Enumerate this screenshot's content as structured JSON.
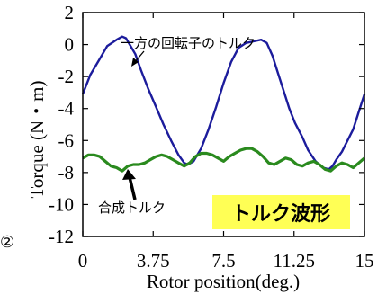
{
  "chart_data": {
    "type": "line",
    "xlabel": "Rotor position(deg.)",
    "ylabel": "Torque (N・m)",
    "xlim": [
      0,
      15
    ],
    "ylim": [
      -12,
      2
    ],
    "x_tick_labels": [
      "0",
      "3.75",
      "7.5",
      "11.25",
      "15"
    ],
    "y_tick_labels": [
      "2",
      "0",
      "-2",
      "-4",
      "-6",
      "-8",
      "-10",
      "-12"
    ],
    "x_ticks": [
      0,
      3.75,
      7.5,
      11.25,
      15
    ],
    "y_ticks": [
      2,
      0,
      -2,
      -4,
      -6,
      -8,
      -10,
      -12
    ],
    "grid": false,
    "series": [
      {
        "color": "#1c1c9c",
        "x": [
          0,
          0.4,
          0.9,
          1.3,
          1.8,
          2.1,
          2.3,
          2.5,
          2.8,
          3.1,
          3.5,
          3.9,
          4.3,
          4.7,
          5.1,
          5.4,
          5.6,
          5.9,
          6.3,
          6.7,
          7.1,
          7.5,
          7.9,
          8.3,
          8.7,
          9.1,
          9.5,
          9.8,
          10.1,
          10.4,
          10.7,
          11.0,
          11.3,
          11.7,
          12.0,
          12.4,
          12.8,
          13.1,
          13.3,
          13.5,
          13.8,
          14.1,
          14.4,
          14.7,
          15.0
        ],
        "y": [
          -3.1,
          -1.9,
          -0.9,
          -0.1,
          0.3,
          0.5,
          0.4,
          0.0,
          -0.6,
          -1.6,
          -2.8,
          -3.9,
          -5.0,
          -6.0,
          -6.9,
          -7.4,
          -7.5,
          -7.3,
          -6.5,
          -5.3,
          -3.9,
          -2.4,
          -1.1,
          -0.2,
          0.1,
          0.2,
          0.3,
          0.1,
          -0.7,
          -1.8,
          -2.9,
          -4.0,
          -4.9,
          -5.8,
          -6.6,
          -7.3,
          -7.7,
          -7.8,
          -7.6,
          -7.2,
          -6.7,
          -6.0,
          -5.3,
          -4.2,
          -3.1
        ]
      },
      {
        "color": "#2a8a1e",
        "x": [
          0,
          0.3,
          0.6,
          0.9,
          1.2,
          1.5,
          1.8,
          2.1,
          2.4,
          2.7,
          3.0,
          3.3,
          3.6,
          3.9,
          4.2,
          4.5,
          4.8,
          5.1,
          5.4,
          5.7,
          6.0,
          6.3,
          6.6,
          6.9,
          7.2,
          7.5,
          7.8,
          8.1,
          8.4,
          8.7,
          9.0,
          9.3,
          9.6,
          9.9,
          10.2,
          10.5,
          10.8,
          11.1,
          11.4,
          11.7,
          12.0,
          12.3,
          12.6,
          12.9,
          13.2,
          13.5,
          13.8,
          14.1,
          14.4,
          14.7,
          15.0
        ],
        "y": [
          -7.1,
          -6.9,
          -6.9,
          -7.0,
          -7.3,
          -7.6,
          -7.7,
          -7.9,
          -7.6,
          -7.5,
          -7.5,
          -7.4,
          -7.2,
          -7.0,
          -6.9,
          -7.0,
          -7.2,
          -7.4,
          -7.6,
          -7.4,
          -7.0,
          -6.8,
          -6.8,
          -6.9,
          -7.1,
          -7.3,
          -7.0,
          -6.8,
          -6.6,
          -6.5,
          -6.5,
          -6.7,
          -7.0,
          -7.4,
          -7.5,
          -7.3,
          -7.1,
          -7.2,
          -7.5,
          -7.6,
          -7.4,
          -7.3,
          -7.5,
          -7.8,
          -7.9,
          -7.6,
          -7.4,
          -7.5,
          -7.7,
          -7.4,
          -7.1
        ]
      }
    ],
    "annotations": {
      "blue_label": "一方の回転子のトルク",
      "green_label": "合成トルク",
      "badge": "トルク波形",
      "badge_color": "#ffff55"
    },
    "corner_mark": "②"
  }
}
